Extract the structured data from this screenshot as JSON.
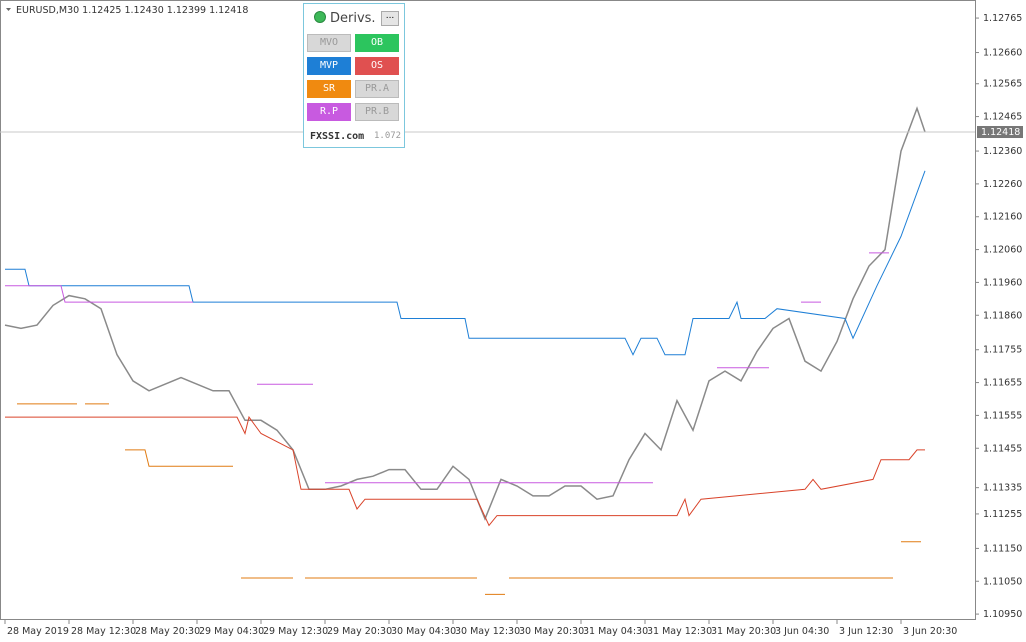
{
  "chart_data": {
    "type": "line",
    "title": "EURUSD,M30  1.12425 1.12430 1.12399 1.12418",
    "current_price": 1.12418,
    "xlim": [
      -1.25,
      242.5
    ],
    "ylim": [
      1.10932,
      1.1282
    ],
    "xticks": [
      {
        "value": 0,
        "label": "28 May 2019"
      },
      {
        "value": 16,
        "label": "28 May 12:30"
      },
      {
        "value": 32,
        "label": "28 May 20:30"
      },
      {
        "value": 48,
        "label": "29 May 04:30"
      },
      {
        "value": 64,
        "label": "29 May 12:30"
      },
      {
        "value": 80,
        "label": "29 May 20:30"
      },
      {
        "value": 96,
        "label": "30 May 04:30"
      },
      {
        "value": 112,
        "label": "30 May 12:30"
      },
      {
        "value": 128,
        "label": "30 May 20:30"
      },
      {
        "value": 144,
        "label": "31 May 04:30"
      },
      {
        "value": 160,
        "label": "31 May 12:30"
      },
      {
        "value": 176,
        "label": "31 May 20:30"
      },
      {
        "value": 192,
        "label": "3 Jun 04:30"
      },
      {
        "value": 208,
        "label": "3 Jun 12:30"
      },
      {
        "value": 224,
        "label": "3 Jun 20:30"
      }
    ],
    "yticks": [
      1.12765,
      {
        "value": 1.1266,
        "label": "1.12660"
      },
      1.12565,
      1.12465,
      {
        "value": 1.1236,
        "label": "1.12360"
      },
      {
        "value": 1.1226,
        "label": "1.12260"
      },
      {
        "value": 1.1216,
        "label": "1.12160"
      },
      {
        "value": 1.1206,
        "label": "1.12060"
      },
      {
        "value": 1.1196,
        "label": "1.11960"
      },
      {
        "value": 1.1186,
        "label": "1.11860"
      },
      1.11755,
      1.11655,
      1.11555,
      1.11455,
      1.11335,
      1.11255,
      {
        "value": 1.1115,
        "label": "1.11150"
      },
      {
        "value": 1.1105,
        "label": "1.11050"
      },
      {
        "value": 1.1095,
        "label": "1.10950"
      }
    ],
    "series": [
      {
        "color": "#8a8a8a",
        "x": [
          0,
          4,
          8,
          12,
          16,
          20,
          24,
          28,
          32,
          36,
          40,
          44,
          48,
          52,
          56,
          60,
          64,
          68,
          72,
          76,
          80,
          84,
          88,
          92,
          96,
          100,
          104,
          108,
          112,
          116,
          120,
          124,
          128,
          132,
          136,
          140,
          144,
          148,
          152,
          156,
          160,
          164,
          168,
          172,
          176,
          180,
          184,
          188,
          192,
          196,
          200,
          204,
          208,
          212,
          216,
          220,
          224,
          228,
          230
        ],
        "values": [
          1.1183,
          1.1182,
          1.1183,
          1.1189,
          1.1192,
          1.1191,
          1.1188,
          1.1174,
          1.1166,
          1.1163,
          1.1165,
          1.1167,
          1.1165,
          1.1163,
          1.1163,
          1.1154,
          1.1154,
          1.1151,
          1.1145,
          1.1133,
          1.1133,
          1.1134,
          1.1136,
          1.1137,
          1.1139,
          1.1139,
          1.1133,
          1.1133,
          1.114,
          1.1136,
          1.1124,
          1.1136,
          1.1134,
          1.1131,
          1.1131,
          1.1134,
          1.1134,
          1.113,
          1.1131,
          1.1142,
          1.115,
          1.1145,
          1.116,
          1.1151,
          1.1166,
          1.1169,
          1.1166,
          1.1175,
          1.1182,
          1.1185,
          1.1172,
          1.1169,
          1.1178,
          1.1191,
          1.1201,
          1.1206,
          1.1236,
          1.1249,
          1.12418
        ]
      },
      {
        "color": "#1e7fd6",
        "x": [
          0,
          5,
          6,
          46,
          47,
          98,
          99,
          115,
          116,
          155,
          157,
          159,
          163,
          165,
          170,
          172,
          181,
          183,
          184,
          190,
          193,
          210,
          212,
          218,
          224,
          230
        ],
        "values": [
          1.12,
          1.12,
          1.1195,
          1.1195,
          1.119,
          1.119,
          1.1185,
          1.1185,
          1.1179,
          1.1179,
          1.1174,
          1.1179,
          1.1179,
          1.1174,
          1.1174,
          1.1185,
          1.1185,
          1.119,
          1.1185,
          1.1185,
          1.1188,
          1.1185,
          1.1179,
          1.1195,
          1.121,
          1.123
        ]
      },
      {
        "color": "#d9432a",
        "x": [
          0,
          58,
          60,
          61,
          64,
          72,
          74,
          86,
          88,
          90,
          118,
          121,
          123,
          168,
          170,
          171,
          174,
          200,
          202,
          204,
          217,
          219,
          226,
          228,
          230
        ],
        "values": [
          1.1155,
          1.1155,
          1.115,
          1.1155,
          1.115,
          1.1145,
          1.1133,
          1.1133,
          1.1127,
          1.113,
          1.113,
          1.1122,
          1.1125,
          1.1125,
          1.113,
          1.1125,
          1.113,
          1.1133,
          1.1136,
          1.1133,
          1.1136,
          1.1142,
          1.1142,
          1.1145,
          1.1145
        ]
      },
      {
        "color": "#e07b12",
        "x": [
          3,
          18,
          19,
          20,
          26,
          27,
          30,
          35,
          36,
          57,
          58,
          59,
          72,
          73,
          75,
          118,
          119,
          120,
          125,
          126,
          126,
          222,
          223,
          224,
          229
        ],
        "values": [
          1.1159,
          1.1159,
          null,
          1.1159,
          1.1159,
          null,
          1.1145,
          1.1145,
          1.114,
          1.114,
          null,
          1.1106,
          1.1106,
          null,
          1.1106,
          1.1106,
          null,
          1.1101,
          1.1101,
          null,
          1.1106,
          1.1106,
          null,
          1.1117,
          1.1117
        ]
      },
      {
        "color": "#c85ae0",
        "x": [
          0,
          14,
          15,
          47,
          48,
          63,
          77,
          78,
          80,
          162,
          163,
          178,
          191,
          192,
          199,
          204,
          205,
          216,
          221
        ],
        "values": [
          1.1195,
          1.1195,
          1.119,
          1.119,
          null,
          1.1165,
          1.1165,
          null,
          1.1135,
          1.1135,
          null,
          1.117,
          1.117,
          null,
          1.119,
          1.119,
          null,
          1.1205,
          1.1205
        ]
      }
    ]
  },
  "panel": {
    "title": "Derivs.",
    "menu": "...",
    "buttons": [
      "MVO",
      "OB",
      "MVP",
      "OS",
      "SR",
      "PR.A",
      "R.P",
      "PR.B"
    ],
    "site": "FXSSI.com",
    "version": "1.072"
  }
}
